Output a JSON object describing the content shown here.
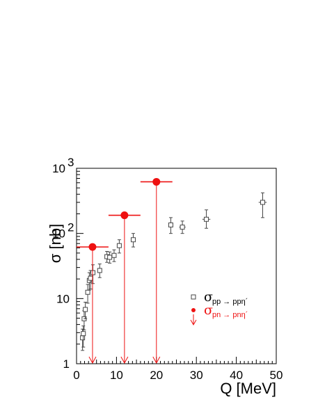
{
  "chart_data": {
    "type": "scatter",
    "title": "",
    "xlabel": "Q [MeV]",
    "ylabel": "σ [nb]",
    "xlim": [
      0,
      50
    ],
    "ylim": [
      1,
      1000
    ],
    "yscale": "log",
    "grid": false,
    "legend_position": "right",
    "x_ticks": [
      {
        "value": 0,
        "label": "0"
      },
      {
        "value": 10,
        "label": "10"
      },
      {
        "value": 20,
        "label": "20"
      },
      {
        "value": 30,
        "label": "30"
      },
      {
        "value": 40,
        "label": "40"
      },
      {
        "value": 50,
        "label": "50"
      }
    ],
    "y_ticks": [
      {
        "value": 1,
        "label": "1",
        "sup": ""
      },
      {
        "value": 10,
        "label": "10",
        "sup": ""
      },
      {
        "value": 100,
        "label": "10",
        "sup": "2"
      },
      {
        "value": 1000,
        "label": "10",
        "sup": "3"
      }
    ],
    "series": [
      {
        "name": "σ pp → ppη´",
        "legend_symbol": "σ",
        "legend_subscript": "pp → ppη´",
        "color": "#444444",
        "marker": "open-square",
        "points": [
          {
            "x": 1.5,
            "y": 2.5,
            "ylo": 1.6,
            "yhi": 3.4,
            "xerr": 0.3
          },
          {
            "x": 1.7,
            "y": 2.9,
            "ylo": 1.8,
            "yhi": 3.8,
            "xerr": 0.3
          },
          {
            "x": 1.9,
            "y": 4.9,
            "ylo": 3.3,
            "yhi": 6.5,
            "xerr": 0.3
          },
          {
            "x": 2.2,
            "y": 6.8,
            "ylo": 4.9,
            "yhi": 8.8,
            "xerr": 0.3
          },
          {
            "x": 2.8,
            "y": 12.5,
            "ylo": 8.5,
            "yhi": 16.5,
            "xerr": 0.3
          },
          {
            "x": 3.2,
            "y": 19.0,
            "ylo": 13.5,
            "yhi": 25.0,
            "xerr": 0.3
          },
          {
            "x": 3.5,
            "y": 20.5,
            "ylo": 14.0,
            "yhi": 27.0,
            "xerr": 0.3
          },
          {
            "x": 4.1,
            "y": 25.0,
            "ylo": 17.0,
            "yhi": 33.0,
            "xerr": 0.3
          },
          {
            "x": 5.8,
            "y": 27.0,
            "ylo": 21.0,
            "yhi": 34.0,
            "xerr": 0.4
          },
          {
            "x": 7.6,
            "y": 44.0,
            "ylo": 36.0,
            "yhi": 53.0,
            "xerr": 0.4
          },
          {
            "x": 8.3,
            "y": 43.0,
            "ylo": 35.0,
            "yhi": 52.0,
            "xerr": 0.4
          },
          {
            "x": 9.4,
            "y": 46.0,
            "ylo": 37.0,
            "yhi": 56.0,
            "xerr": 0.4
          },
          {
            "x": 10.7,
            "y": 65.0,
            "ylo": 50.0,
            "yhi": 80.0,
            "xerr": 0.5
          },
          {
            "x": 14.2,
            "y": 80.0,
            "ylo": 62.0,
            "yhi": 100.0,
            "xerr": 0.5
          },
          {
            "x": 23.6,
            "y": 135.0,
            "ylo": 100.0,
            "yhi": 175.0,
            "xerr": 0.6
          },
          {
            "x": 26.5,
            "y": 125.0,
            "ylo": 100.0,
            "yhi": 155.0,
            "xerr": 0.8
          },
          {
            "x": 32.5,
            "y": 165.0,
            "ylo": 120.0,
            "yhi": 230.0,
            "xerr": 1.0
          },
          {
            "x": 46.6,
            "y": 300.0,
            "ylo": 175.0,
            "yhi": 420.0,
            "xerr": 1.0
          }
        ]
      },
      {
        "name": "σ pn → pnη´",
        "legend_symbol": "σ",
        "legend_subscript": "pn → pnη´",
        "color": "#ee1111",
        "marker": "filled-circle",
        "upper_limit": true,
        "points": [
          {
            "x": 4.0,
            "y": 62.0,
            "xlo": 0.0,
            "xhi": 8.0
          },
          {
            "x": 12.0,
            "y": 190.0,
            "xlo": 8.0,
            "xhi": 16.0
          },
          {
            "x": 20.0,
            "y": 620.0,
            "xlo": 16.0,
            "xhi": 24.0
          }
        ]
      }
    ]
  }
}
